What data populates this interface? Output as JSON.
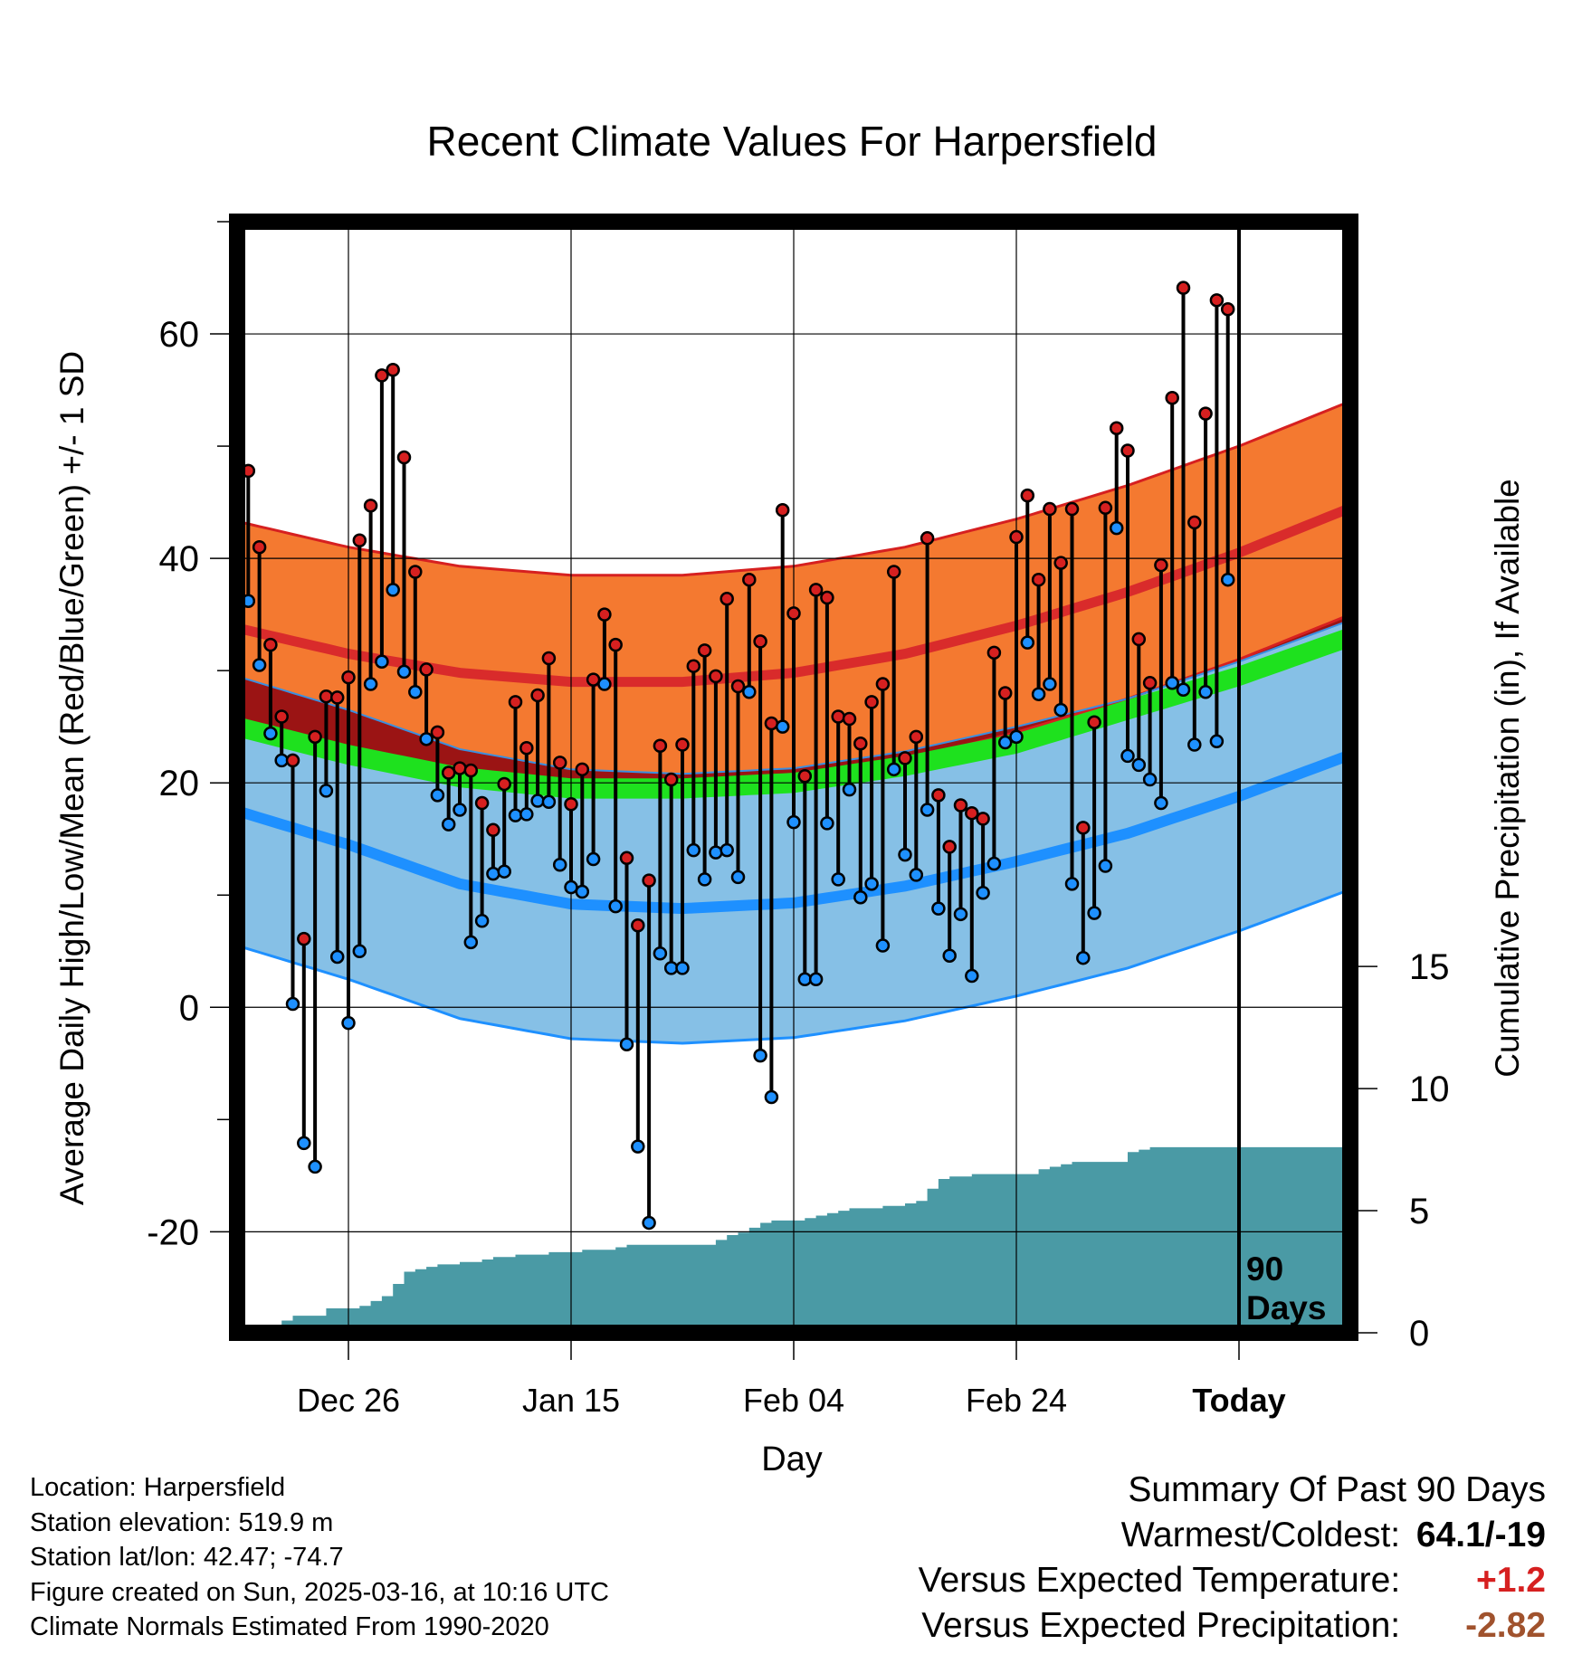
{
  "chart_data": {
    "type": "line",
    "title": "Recent Climate Values For Harpersfield",
    "xlabel": "Day",
    "ylabel": "Average Daily High/Low/Mean (Red/Blue/Green) +/- 1 SD",
    "ylabel_right": "Cumulative Precipitation (in), If Available",
    "x_ticks": [
      "Dec 26",
      "Jan 15",
      "Feb 04",
      "Feb 24",
      "Today"
    ],
    "x_tick_days": [
      10,
      30,
      50,
      70,
      90
    ],
    "xlim": [
      0,
      100
    ],
    "ylim": [
      -29,
      70
    ],
    "y_ticks": [
      -20,
      0,
      20,
      40,
      60
    ],
    "y_ticks_right": [
      0,
      5,
      10,
      15
    ],
    "ylim_right": [
      0,
      45.5
    ],
    "today_label": [
      "90",
      "Days"
    ],
    "normals": {
      "days": [
        0,
        10,
        20,
        30,
        40,
        50,
        60,
        70,
        80,
        90,
        100
      ],
      "high_mean": [
        33.8,
        31.5,
        29.8,
        29.0,
        29.0,
        29.8,
        31.5,
        34.0,
        37.0,
        40.5,
        44.5
      ],
      "high_sd": 9.5,
      "low_mean": [
        17.5,
        14.5,
        11.0,
        9.2,
        8.8,
        9.3,
        10.8,
        13.0,
        15.5,
        18.8,
        22.5
      ],
      "low_sd": 12.0,
      "mean": [
        25.0,
        22.5,
        20.5,
        19.5,
        19.5,
        20.0,
        21.5,
        23.5,
        26.5,
        29.5,
        33.0
      ],
      "mean_sd": 0.9
    },
    "series": [
      {
        "name": "High",
        "color": "#d62020",
        "values": [
          46.3,
          47.8,
          41,
          32.3,
          25.9,
          22,
          6.1,
          24.1,
          27.7,
          27.6,
          29.4,
          41.6,
          44.7,
          56.3,
          56.8,
          49,
          38.8,
          30.1,
          24.5,
          20.9,
          21.3,
          21.1,
          18.2,
          15.8,
          19.9,
          27.2,
          23.1,
          27.8,
          31.1,
          21.8,
          18.1,
          21.2,
          29.2,
          35,
          32.3,
          13.3,
          7.3,
          11.3,
          23.3,
          20.3,
          23.4,
          30.4,
          31.8,
          29.5,
          36.4,
          28.6,
          38.1,
          32.6,
          25.3,
          44.3,
          35.1,
          20.6,
          37.2,
          36.5,
          25.9,
          25.7,
          23.5,
          27.2,
          28.8,
          38.8,
          22.2,
          24.1,
          41.8,
          18.9,
          14.3,
          18,
          17.3,
          16.8,
          31.6,
          28,
          41.9,
          45.6,
          38.1,
          44.4,
          39.6,
          44.4,
          16,
          25.4,
          44.5,
          51.6,
          49.6,
          32.8,
          28.9,
          39.4,
          54.3,
          64.1,
          43.2,
          52.9,
          63,
          62.2
        ]
      },
      {
        "name": "Low",
        "color": "#1e90ff",
        "values": [
          30.3,
          36.2,
          30.5,
          24.4,
          22,
          0.3,
          -12.1,
          -14.2,
          19.3,
          4.5,
          -1.4,
          5,
          28.8,
          30.8,
          37.2,
          29.9,
          28.1,
          23.9,
          18.9,
          16.3,
          17.6,
          5.8,
          7.7,
          11.9,
          12.1,
          17.1,
          17.2,
          18.4,
          18.3,
          12.7,
          10.7,
          10.3,
          13.2,
          28.8,
          9,
          -3.3,
          -12.4,
          -19.2,
          4.8,
          3.5,
          3.5,
          14,
          11.4,
          13.8,
          14,
          11.6,
          28.1,
          -4.3,
          -8,
          25,
          16.5,
          2.5,
          2.5,
          16.4,
          11.4,
          19.4,
          9.8,
          11,
          5.5,
          21.2,
          13.6,
          11.8,
          17.6,
          8.8,
          4.6,
          8.3,
          2.8,
          10.2,
          12.8,
          23.6,
          24.1,
          32.5,
          27.9,
          28.8,
          26.5,
          11,
          4.4,
          8.4,
          12.6,
          42.7,
          22.4,
          21.6,
          20.3,
          18.2,
          28.9,
          28.3,
          23.4,
          28.1,
          23.7,
          38.1
        ]
      },
      {
        "name": "Precip",
        "color": "#4a9aa5",
        "values": [
          0,
          0,
          0.1,
          0.3,
          0.5,
          0.7,
          0.7,
          0.7,
          1.0,
          1.0,
          1.0,
          1.1,
          1.3,
          1.5,
          2.0,
          2.5,
          2.6,
          2.7,
          2.8,
          2.8,
          2.9,
          2.9,
          3.0,
          3.1,
          3.1,
          3.2,
          3.2,
          3.2,
          3.3,
          3.3,
          3.3,
          3.4,
          3.4,
          3.4,
          3.5,
          3.6,
          3.6,
          3.6,
          3.6,
          3.6,
          3.6,
          3.6,
          3.6,
          3.8,
          4.0,
          4.1,
          4.3,
          4.5,
          4.6,
          4.6,
          4.6,
          4.7,
          4.8,
          4.9,
          5.0,
          5.1,
          5.1,
          5.1,
          5.2,
          5.2,
          5.3,
          5.4,
          5.9,
          6.3,
          6.4,
          6.4,
          6.5,
          6.5,
          6.5,
          6.5,
          6.5,
          6.5,
          6.7,
          6.8,
          6.9,
          7.0,
          7.0,
          7.0,
          7.0,
          7.0,
          7.4,
          7.5,
          7.6,
          7.6,
          7.6,
          7.6,
          7.6,
          7.6,
          7.6,
          7.6,
          7.6
        ]
      }
    ]
  },
  "info": {
    "location": "Location: Harpersfield",
    "elevation": "Station elevation: 519.9 m",
    "latlon": "Station lat/lon: 42.47; -74.7",
    "created": "Figure created on Sun, 2025-03-16, at 10:16 UTC",
    "normals": "Climate Normals Estimated From 1990-2020"
  },
  "summary": {
    "title": "Summary Of Past 90 Days",
    "warm_cold_label": "Warmest/Coldest:",
    "warm_cold_value": "64.1/-19",
    "temp_label": "Versus Expected Temperature:",
    "temp_value": "+1.2",
    "temp_color": "#d62020",
    "precip_label": "Versus Expected Precipitation:",
    "precip_value": "-2.82",
    "precip_color": "#a0522d"
  }
}
